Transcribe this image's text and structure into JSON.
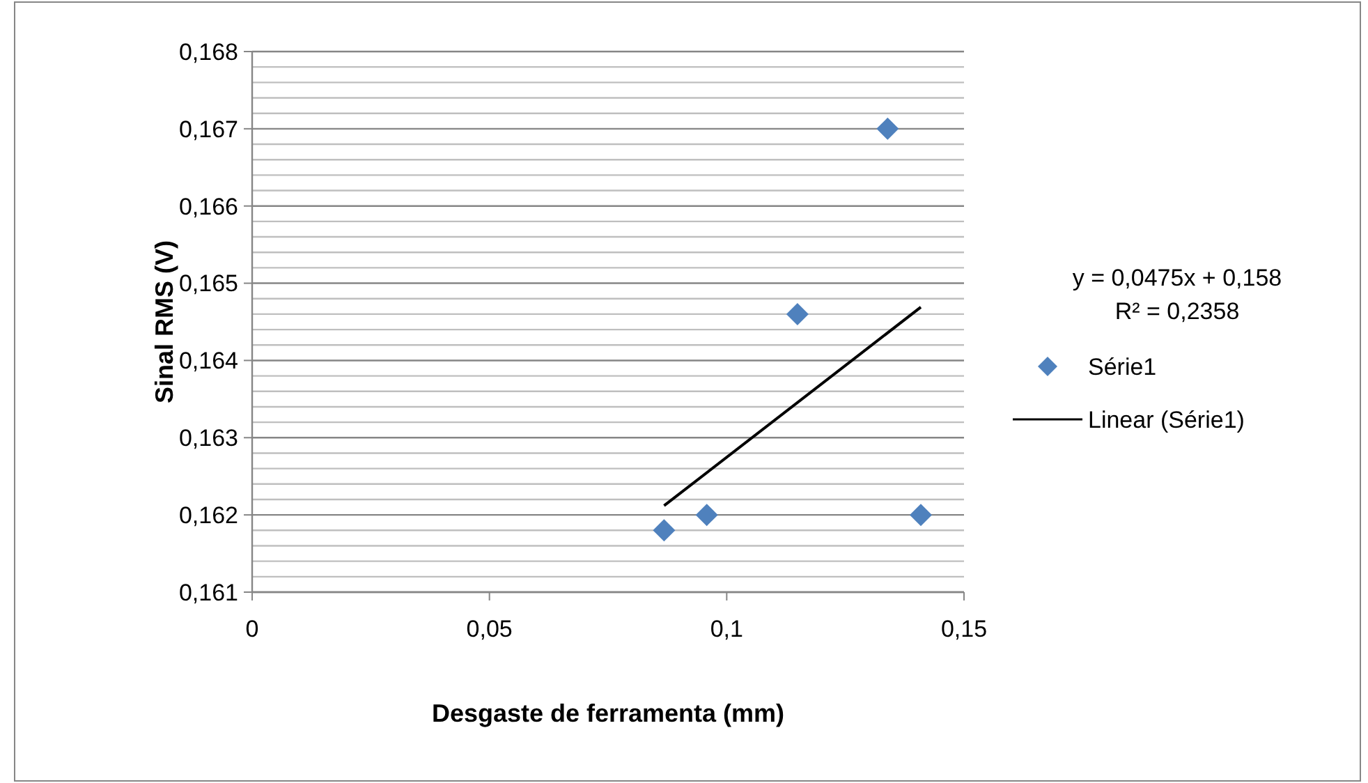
{
  "chart_data": {
    "type": "scatter",
    "xlabel": "Desgaste de ferramenta (mm)",
    "ylabel": "Sinal RMS (V)",
    "annotations": [
      "y = 0,0475x + 0,158",
      "R² = 0,2358"
    ],
    "xlim": [
      0,
      0.15
    ],
    "xticks": [
      {
        "value": 0,
        "label": "0"
      },
      {
        "value": 0.05,
        "label": "0,05"
      },
      {
        "value": 0.1,
        "label": "0,1"
      },
      {
        "value": 0.15,
        "label": "0,15"
      }
    ],
    "ylim": [
      0.161,
      0.168
    ],
    "yticks": [
      {
        "value": 0.161,
        "label": "0,161"
      },
      {
        "value": 0.1612,
        "label": null
      },
      {
        "value": 0.1614,
        "label": null
      },
      {
        "value": 0.1616,
        "label": null
      },
      {
        "value": 0.1618,
        "label": null
      },
      {
        "value": 0.162,
        "label": "0,162"
      },
      {
        "value": 0.1622,
        "label": null
      },
      {
        "value": 0.1624,
        "label": null
      },
      {
        "value": 0.1626,
        "label": null
      },
      {
        "value": 0.1628,
        "label": null
      },
      {
        "value": 0.163,
        "label": "0,163"
      },
      {
        "value": 0.1632,
        "label": null
      },
      {
        "value": 0.1634,
        "label": null
      },
      {
        "value": 0.1636,
        "label": null
      },
      {
        "value": 0.1638,
        "label": null
      },
      {
        "value": 0.164,
        "label": "0,164"
      },
      {
        "value": 0.1642,
        "label": null
      },
      {
        "value": 0.1644,
        "label": null
      },
      {
        "value": 0.1646,
        "label": null
      },
      {
        "value": 0.1648,
        "label": null
      },
      {
        "value": 0.165,
        "label": "0,165"
      },
      {
        "value": 0.1652,
        "label": null
      },
      {
        "value": 0.1654,
        "label": null
      },
      {
        "value": 0.1656,
        "label": null
      },
      {
        "value": 0.1658,
        "label": null
      },
      {
        "value": 0.166,
        "label": "0,166"
      },
      {
        "value": 0.1662,
        "label": null
      },
      {
        "value": 0.1664,
        "label": null
      },
      {
        "value": 0.1666,
        "label": null
      },
      {
        "value": 0.1668,
        "label": null
      },
      {
        "value": 0.167,
        "label": "0,167"
      },
      {
        "value": 0.1672,
        "label": null
      },
      {
        "value": 0.1674,
        "label": null
      },
      {
        "value": 0.1676,
        "label": null
      },
      {
        "value": 0.1678,
        "label": null
      },
      {
        "value": 0.168,
        "label": "0,168"
      }
    ],
    "grid": "y",
    "legend": "right",
    "series": [
      {
        "name": "Série1",
        "marker": "diamond",
        "color": "#4f81bd",
        "x": [
          0.0868,
          0.0958,
          0.1149,
          0.1339,
          0.1409
        ],
        "values": [
          0.1618,
          0.162,
          0.1646,
          0.167,
          0.162
        ]
      },
      {
        "name": "Linear (Série1)",
        "type": "line",
        "color": "#000000",
        "line_style": "solid",
        "x": [
          0.0868,
          0.1409
        ],
        "values": [
          0.16212,
          0.16469
        ]
      }
    ]
  }
}
